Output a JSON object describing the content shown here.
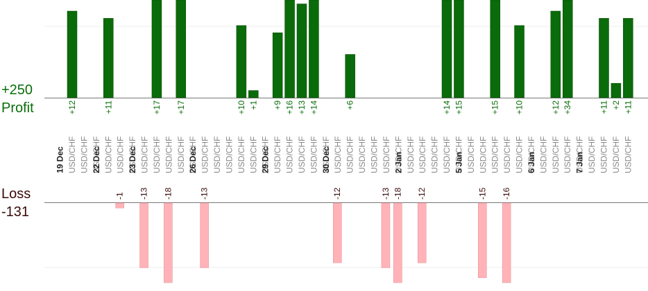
{
  "labels": {
    "profit_total": "+250",
    "profit": "Profit",
    "loss": "Loss",
    "loss_total": "-131"
  },
  "colors": {
    "profit_bar": "#0a6b0a",
    "profit_bar_edge": "#064806",
    "profit_text": "#0a6e0a",
    "loss_bar": "#ffb3b8",
    "loss_bar_edge": "#e58a90",
    "loss_text": "#3a0a0a",
    "date_text": "#222222",
    "pair_text": "#888888",
    "axis": "#777777",
    "grid": "#eeeeee"
  },
  "chart_data": {
    "type": "bar",
    "title": "",
    "xlabel": "",
    "ylabel": "",
    "grid": true,
    "dates": [
      "19 Dec",
      "22 Dec",
      "23 Dec",
      "26 Dec",
      "29 Dec",
      "30 Dec",
      "2 Jan",
      "5 Jan",
      "6 Jan",
      "7 Jan"
    ],
    "trades": [
      {
        "pair": "USD/CHF",
        "value": 12,
        "label": "+12",
        "date": "19 Dec"
      },
      {
        "pair": "USD/CHF",
        "value": null,
        "label": ""
      },
      {
        "pair": "USD/CHF",
        "value": null,
        "label": ""
      },
      {
        "pair": "USD/CHF",
        "value": 11,
        "label": "+11",
        "date": "22 Dec"
      },
      {
        "pair": "USD/CHF",
        "value": -1,
        "label": "-1"
      },
      {
        "pair": "USD/CHF",
        "value": null,
        "label": ""
      },
      {
        "pair": "USD/CHF",
        "value": -13,
        "label": "-13",
        "date": "23 Dec"
      },
      {
        "pair": "USD/CHF",
        "value": 17,
        "label": "+17"
      },
      {
        "pair": "USD/CHF",
        "value": -18,
        "label": "-18"
      },
      {
        "pair": "USD/CHF",
        "value": 17,
        "label": "+17"
      },
      {
        "pair": "USD/CHF",
        "value": null,
        "label": ""
      },
      {
        "pair": "USD/CHF",
        "value": -13,
        "label": "-13",
        "date": "26 Dec"
      },
      {
        "pair": "USD/CHF",
        "value": null,
        "label": ""
      },
      {
        "pair": "USD/CHF",
        "value": null,
        "label": ""
      },
      {
        "pair": "USD/CHF",
        "value": 10,
        "label": "+10"
      },
      {
        "pair": "USD/CHF",
        "value": 1,
        "label": "+1"
      },
      {
        "pair": "USD/CHF",
        "value": null,
        "label": ""
      },
      {
        "pair": "USD/CHF",
        "value": 9,
        "label": "+9",
        "date": "29 Dec"
      },
      {
        "pair": "USD/CHF",
        "value": 16,
        "label": "+16"
      },
      {
        "pair": "USD/CHF",
        "value": 13,
        "label": "+13"
      },
      {
        "pair": "USD/CHF",
        "value": 14,
        "label": "+14"
      },
      {
        "pair": "USD/CHF",
        "value": null,
        "label": ""
      },
      {
        "pair": "USD/CHF",
        "value": -12,
        "label": "-12",
        "date": "30 Dec"
      },
      {
        "pair": "USD/CHF",
        "value": 6,
        "label": "+6"
      },
      {
        "pair": "USD/CHF",
        "value": null,
        "label": ""
      },
      {
        "pair": "USD/CHF",
        "value": null,
        "label": ""
      },
      {
        "pair": "USD/CHF",
        "value": -13,
        "label": "-13"
      },
      {
        "pair": "USD/CHF",
        "value": -18,
        "label": "-18"
      },
      {
        "pair": "USD/CHF",
        "value": null,
        "label": "",
        "date": "2 Jan"
      },
      {
        "pair": "USD/CHF",
        "value": -12,
        "label": "-12"
      },
      {
        "pair": "USD/CHF",
        "value": null,
        "label": ""
      },
      {
        "pair": "USD/CHF",
        "value": 14,
        "label": "+14"
      },
      {
        "pair": "USD/CHF",
        "value": 15,
        "label": "+15"
      },
      {
        "pair": "USD/CHF",
        "value": null,
        "label": "",
        "date": "5 Jan"
      },
      {
        "pair": "USD/CHF",
        "value": -15,
        "label": "-15"
      },
      {
        "pair": "USD/CHF",
        "value": 15,
        "label": "+15"
      },
      {
        "pair": "USD/CHF",
        "value": -16,
        "label": "-16"
      },
      {
        "pair": "USD/CHF",
        "value": 10,
        "label": "+10"
      },
      {
        "pair": "USD/CHF",
        "value": null,
        "label": ""
      },
      {
        "pair": "USD/CHF",
        "value": null,
        "label": "",
        "date": "6 Jan"
      },
      {
        "pair": "USD/CHF",
        "value": 12,
        "label": "+12"
      },
      {
        "pair": "USD/CHF",
        "value": 34,
        "label": "+34"
      },
      {
        "pair": "USD/CHF",
        "value": null,
        "label": ""
      },
      {
        "pair": "USD/CHF",
        "value": null,
        "label": "",
        "date": "7 Jan"
      },
      {
        "pair": "USD/CHF",
        "value": 11,
        "label": "+11"
      },
      {
        "pair": "USD/CHF",
        "value": 2,
        "label": "+2"
      },
      {
        "pair": "USD/CHF",
        "value": 11,
        "label": "+11"
      }
    ],
    "profit_axis_max": 16,
    "loss_axis_max": 16
  }
}
